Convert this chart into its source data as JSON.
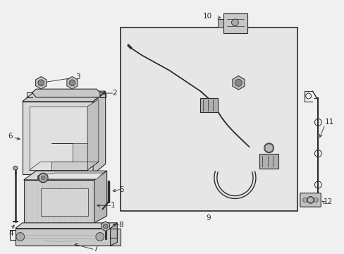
{
  "bg_color": "#f0f0f0",
  "line_color": "#2a2a2a",
  "box_inner_color": "#dcdcdc",
  "part_fill": "#d4d4d4",
  "part_fill2": "#c8c8c8",
  "white": "#ffffff"
}
